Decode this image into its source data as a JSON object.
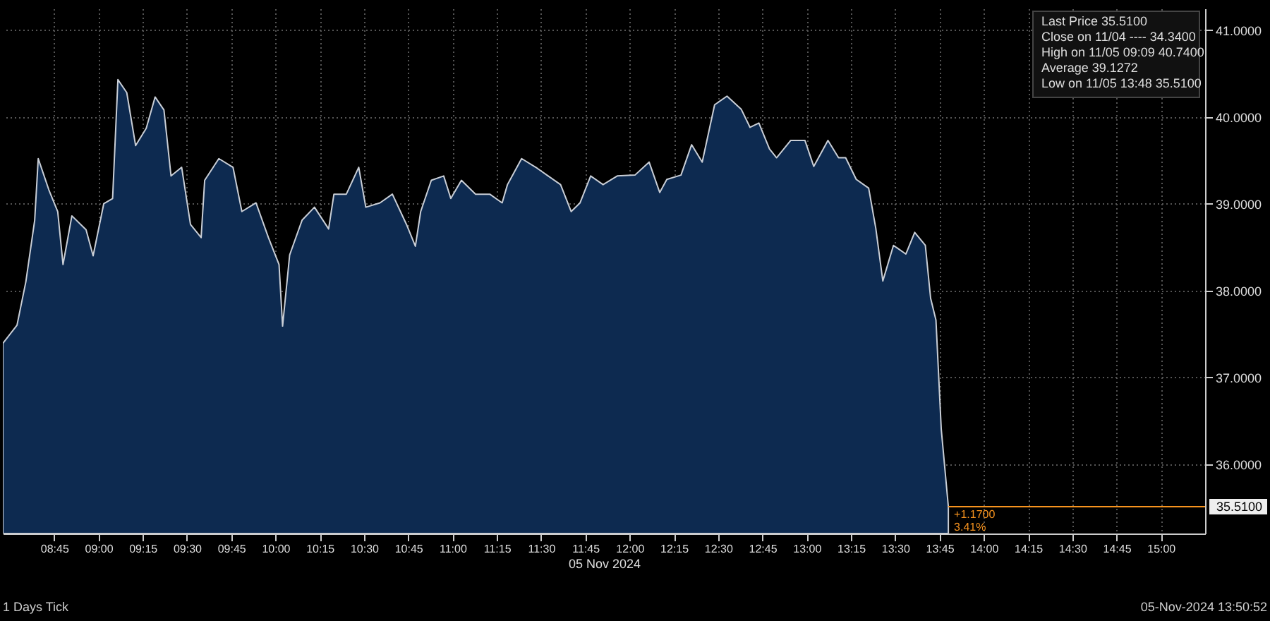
{
  "chart_data": {
    "type": "area",
    "xlabel": "05 Nov 2024",
    "x": [
      8.46,
      8.54,
      8.59,
      8.64,
      8.66,
      8.72,
      8.77,
      8.8,
      8.85,
      8.93,
      8.97,
      9.03,
      9.08,
      9.11,
      9.16,
      9.21,
      9.27,
      9.32,
      9.37,
      9.41,
      9.47,
      9.52,
      9.58,
      9.6,
      9.68,
      9.76,
      9.81,
      9.89,
      9.96,
      10.02,
      10.04,
      10.08,
      10.15,
      10.22,
      10.3,
      10.33,
      10.4,
      10.47,
      10.51,
      10.59,
      10.66,
      10.74,
      10.79,
      10.82,
      10.88,
      10.95,
      10.99,
      11.05,
      11.13,
      11.21,
      11.28,
      11.31,
      11.39,
      11.47,
      11.54,
      11.61,
      11.67,
      11.72,
      11.78,
      11.85,
      11.93,
      12.03,
      12.11,
      12.17,
      12.21,
      12.29,
      12.35,
      12.41,
      12.48,
      12.55,
      12.63,
      12.68,
      12.73,
      12.79,
      12.83,
      12.91,
      12.99,
      13.04,
      13.12,
      13.18,
      13.22,
      13.28,
      13.35,
      13.39,
      13.43,
      13.49,
      13.56,
      13.61,
      13.67,
      13.7,
      13.73,
      13.76,
      13.8
    ],
    "series": [
      {
        "color": "#0d2a50",
        "values": [
          37.39,
          37.6,
          38.1,
          38.81,
          39.52,
          39.16,
          38.91,
          38.3,
          38.86,
          38.7,
          38.4,
          39.0,
          39.06,
          40.43,
          40.28,
          39.67,
          39.87,
          40.23,
          40.08,
          39.32,
          39.42,
          38.76,
          38.61,
          39.27,
          39.52,
          39.42,
          38.91,
          39.01,
          38.61,
          38.3,
          37.59,
          38.41,
          38.81,
          38.96,
          38.71,
          39.11,
          39.11,
          39.42,
          38.96,
          39.01,
          39.11,
          38.76,
          38.51,
          38.91,
          39.27,
          39.32,
          39.06,
          39.27,
          39.11,
          39.11,
          39.01,
          39.22,
          39.52,
          39.42,
          39.32,
          39.22,
          38.91,
          39.01,
          39.32,
          39.22,
          39.32,
          39.33,
          39.48,
          39.13,
          39.28,
          39.33,
          39.68,
          39.48,
          40.14,
          40.24,
          40.09,
          39.88,
          39.93,
          39.63,
          39.53,
          39.73,
          39.73,
          39.43,
          39.73,
          39.53,
          39.53,
          39.28,
          39.18,
          38.72,
          38.11,
          38.52,
          38.42,
          38.67,
          38.52,
          37.91,
          37.66,
          36.4,
          35.51
        ]
      }
    ],
    "xlim": [
      8.46,
      15.25
    ],
    "xticks": [
      {
        "value": 8.75,
        "label": "08:45"
      },
      {
        "value": 9,
        "label": "09:00"
      },
      {
        "value": 9.25,
        "label": "09:15"
      },
      {
        "value": 9.5,
        "label": "09:30"
      },
      {
        "value": 9.75,
        "label": "09:45"
      },
      {
        "value": 10,
        "label": "10:00"
      },
      {
        "value": 10.25,
        "label": "10:15"
      },
      {
        "value": 10.5,
        "label": "10:30"
      },
      {
        "value": 10.75,
        "label": "10:45"
      },
      {
        "value": 11,
        "label": "11:00"
      },
      {
        "value": 11.25,
        "label": "11:15"
      },
      {
        "value": 11.5,
        "label": "11:30"
      },
      {
        "value": 11.75,
        "label": "11:45"
      },
      {
        "value": 12,
        "label": "12:00"
      },
      {
        "value": 12.25,
        "label": "12:15"
      },
      {
        "value": 12.5,
        "label": "12:30"
      },
      {
        "value": 12.75,
        "label": "12:45"
      },
      {
        "value": 13,
        "label": "13:00"
      },
      {
        "value": 13.25,
        "label": "13:15"
      },
      {
        "value": 13.5,
        "label": "13:30"
      },
      {
        "value": 13.75,
        "label": "13:45"
      },
      {
        "value": 14,
        "label": "14:00"
      },
      {
        "value": 14.25,
        "label": "14:15"
      },
      {
        "value": 14.5,
        "label": "14:30"
      },
      {
        "value": 14.75,
        "label": "14:45"
      },
      {
        "value": 15,
        "label": "15:00"
      }
    ],
    "ylim": [
      35.2,
      41.25
    ],
    "yticks": [
      {
        "value": 36,
        "label": "36.0000"
      },
      {
        "value": 37,
        "label": "37.0000"
      },
      {
        "value": 38,
        "label": "38.0000"
      },
      {
        "value": 39,
        "label": "39.0000"
      },
      {
        "value": 40,
        "label": "40.0000"
      },
      {
        "value": 41,
        "label": "41.0000"
      }
    ],
    "grid": true,
    "ref_lines": [
      {
        "axis": "y",
        "value": 35.51,
        "label": "35.5100",
        "color": "#f7931e"
      }
    ],
    "annotations": [
      "+1.1700",
      "3.41%",
      "Last Price 35.5100",
      "Close on 11/04 ---- 34.3400",
      "High on 11/05 09:09 40.7400",
      "Average 39.1272",
      "Low on 11/05 13:48 35.5100",
      "1 Days  Tick",
      "05-Nov-2024 13:50:52"
    ]
  }
}
